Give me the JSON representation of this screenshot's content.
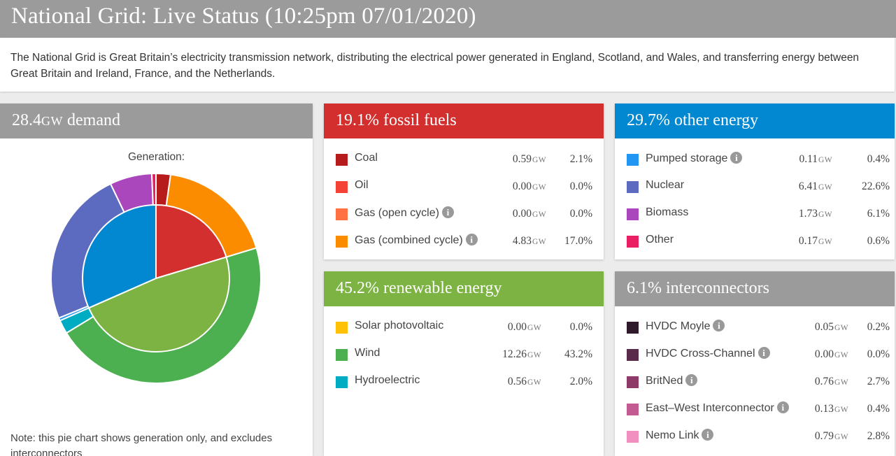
{
  "header": {
    "title": "National Grid: Live Status (10:25pm 07/01/2020)",
    "intro": "The National Grid is Great Britain’s electricity transmission network, distributing the electrical power generated in England, Scotland, and Wales, and transferring energy between Great Britain and Ireland, France, and the Netherlands."
  },
  "demand": {
    "value": "28.4",
    "unit": "GW",
    "suffix": " demand",
    "pie_title": "Generation:",
    "note": "Note: this pie chart shows generation only, and excludes interconnectors"
  },
  "colors": {
    "header_bg": "#9b9b9b",
    "fossil": "#d32f2f",
    "other": "#0288d1",
    "renewable": "#7cb342",
    "interconnectors": "#9b9b9b",
    "info_icon": "#999999"
  },
  "categories": [
    {
      "id": "fossil",
      "title": "19.1% fossil fuels",
      "color": "#d32f2f",
      "items": [
        {
          "label": "Coal",
          "gw": "0.59",
          "unit": "GW",
          "pct": "2.1%",
          "color": "#b71c1c",
          "info": false
        },
        {
          "label": "Oil",
          "gw": "0.00",
          "unit": "GW",
          "pct": "0.0%",
          "color": "#f44336",
          "info": false
        },
        {
          "label": "Gas (open cycle)",
          "gw": "0.00",
          "unit": "GW",
          "pct": "0.0%",
          "color": "#ff7043",
          "info": true
        },
        {
          "label": "Gas (combined cycle)",
          "gw": "4.83",
          "unit": "GW",
          "pct": "17.0%",
          "color": "#fb8c00",
          "info": true
        }
      ]
    },
    {
      "id": "other",
      "title": "29.7% other energy",
      "color": "#0288d1",
      "items": [
        {
          "label": "Pumped storage",
          "gw": "0.11",
          "unit": "GW",
          "pct": "0.4%",
          "color": "#2196f3",
          "info": true
        },
        {
          "label": "Nuclear",
          "gw": "6.41",
          "unit": "GW",
          "pct": "22.6%",
          "color": "#5c6bc0",
          "info": false
        },
        {
          "label": "Biomass",
          "gw": "1.73",
          "unit": "GW",
          "pct": "6.1%",
          "color": "#ab47bc",
          "info": false
        },
        {
          "label": "Other",
          "gw": "0.17",
          "unit": "GW",
          "pct": "0.6%",
          "color": "#e91e63",
          "info": false
        }
      ]
    },
    {
      "id": "renewable",
      "title": "45.2% renewable energy",
      "color": "#7cb342",
      "items": [
        {
          "label": "Solar photovoltaic",
          "gw": "0.00",
          "unit": "GW",
          "pct": "0.0%",
          "color": "#ffc107",
          "info": false
        },
        {
          "label": "Wind",
          "gw": "12.26",
          "unit": "GW",
          "pct": "43.2%",
          "color": "#4caf50",
          "info": false
        },
        {
          "label": "Hydroelectric",
          "gw": "0.56",
          "unit": "GW",
          "pct": "2.0%",
          "color": "#00acc1",
          "info": false
        }
      ]
    },
    {
      "id": "interconnectors",
      "title": "6.1% interconnectors",
      "color": "#9b9b9b",
      "items": [
        {
          "label": "HVDC Moyle",
          "gw": "0.05",
          "unit": "GW",
          "pct": "0.2%",
          "color": "#2e1a2b",
          "info": true
        },
        {
          "label": "HVDC Cross-Channel",
          "gw": "0.00",
          "unit": "GW",
          "pct": "0.0%",
          "color": "#5a2a4a",
          "info": true
        },
        {
          "label": "BritNed",
          "gw": "0.76",
          "unit": "GW",
          "pct": "2.7%",
          "color": "#8e3a68",
          "info": true
        },
        {
          "label": "East–West Interconnector",
          "gw": "0.13",
          "unit": "GW",
          "pct": "0.4%",
          "color": "#c45a92",
          "info": true
        },
        {
          "label": "Nemo Link",
          "gw": "0.79",
          "unit": "GW",
          "pct": "2.8%",
          "color": "#f08fc0",
          "info": true
        }
      ]
    }
  ],
  "chart_data": {
    "type": "pie",
    "title": "Generation:",
    "inner": [
      {
        "name": "fossil fuels",
        "value": 19.1,
        "color": "#d32f2f"
      },
      {
        "name": "renewable energy",
        "value": 45.2,
        "color": "#7cb342"
      },
      {
        "name": "other energy",
        "value": 29.7,
        "color": "#0288d1"
      }
    ],
    "outer": [
      {
        "name": "Coal",
        "value": 2.1,
        "color": "#b71c1c"
      },
      {
        "name": "Oil",
        "value": 0.0,
        "color": "#f44336"
      },
      {
        "name": "Gas (open cycle)",
        "value": 0.0,
        "color": "#ff7043"
      },
      {
        "name": "Gas (combined cycle)",
        "value": 17.0,
        "color": "#fb8c00"
      },
      {
        "name": "Solar photovoltaic",
        "value": 0.0,
        "color": "#ffc107"
      },
      {
        "name": "Wind",
        "value": 43.2,
        "color": "#4caf50"
      },
      {
        "name": "Hydroelectric",
        "value": 2.0,
        "color": "#00acc1"
      },
      {
        "name": "Pumped storage",
        "value": 0.4,
        "color": "#2196f3"
      },
      {
        "name": "Nuclear",
        "value": 22.6,
        "color": "#5c6bc0"
      },
      {
        "name": "Biomass",
        "value": 6.1,
        "color": "#ab47bc"
      },
      {
        "name": "Other",
        "value": 0.6,
        "color": "#e91e63"
      }
    ]
  }
}
